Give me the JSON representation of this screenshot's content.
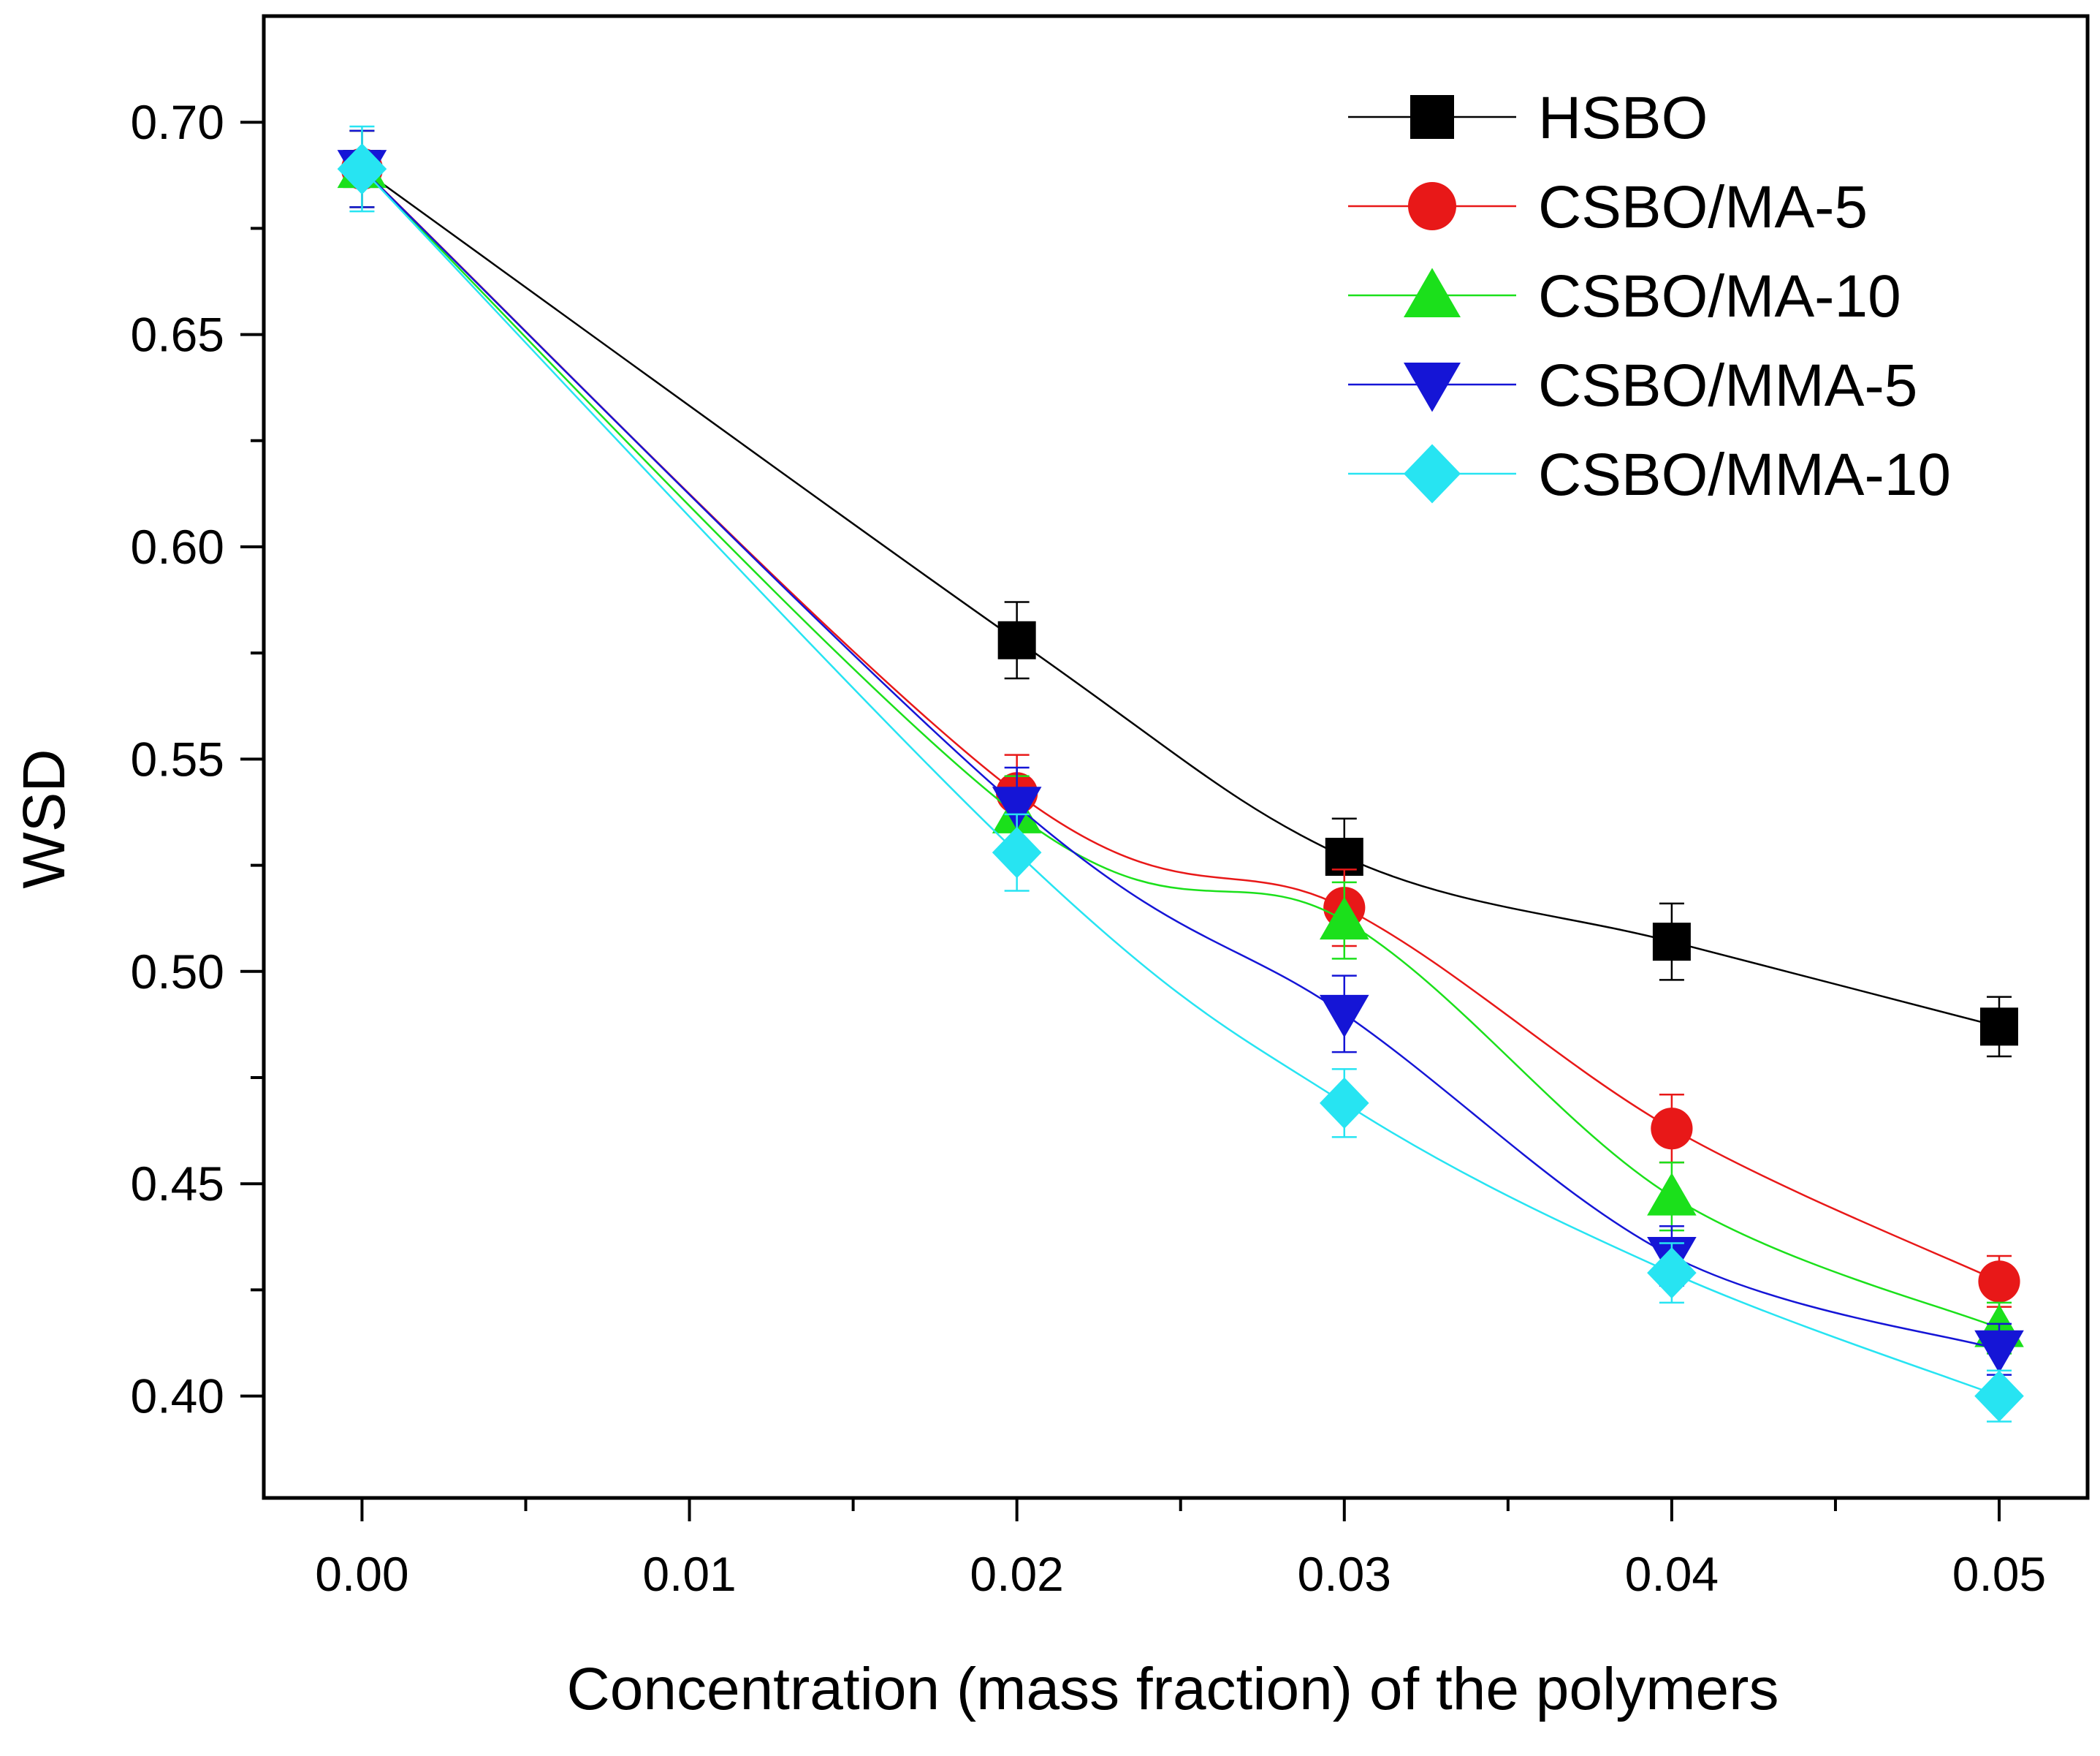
{
  "chart_data": {
    "type": "line",
    "title": "",
    "xlabel": "Concentration (mass fraction) of the polymers",
    "ylabel": "WSD",
    "xlim": [
      -0.003,
      0.0527
    ],
    "ylim": [
      0.376,
      0.725
    ],
    "x_ticks": [
      0.0,
      0.01,
      0.02,
      0.03,
      0.04,
      0.05
    ],
    "x_tick_labels": [
      "0.00",
      "0.01",
      "0.02",
      "0.03",
      "0.04",
      "0.05"
    ],
    "x_minor_ticks": [
      0.005,
      0.015,
      0.025,
      0.035,
      0.045
    ],
    "y_ticks": [
      0.4,
      0.45,
      0.5,
      0.55,
      0.6,
      0.65,
      0.7
    ],
    "y_tick_labels": [
      "0.40",
      "0.45",
      "0.50",
      "0.55",
      "0.60",
      "0.65",
      "0.70"
    ],
    "y_minor_ticks": [
      0.425,
      0.475,
      0.525,
      0.575,
      0.625,
      0.675
    ],
    "grid": false,
    "legend_position": "top-right",
    "x": [
      0.0,
      0.02,
      0.03,
      0.04,
      0.05
    ],
    "series": [
      {
        "name": "HSBO",
        "color": "#000000",
        "marker": "square",
        "values": [
          0.689,
          0.578,
          0.527,
          0.507,
          0.487
        ],
        "errors": [
          0.009,
          0.009,
          0.009,
          0.009,
          0.007
        ]
      },
      {
        "name": "CSBO/MA-5",
        "color": "#e81818",
        "marker": "circle",
        "values": [
          0.689,
          0.542,
          0.515,
          0.463,
          0.427
        ],
        "errors": [
          0.009,
          0.009,
          0.009,
          0.008,
          0.006
        ]
      },
      {
        "name": "CSBO/MA-10",
        "color": "#1be01b",
        "marker": "triangle-up",
        "values": [
          0.689,
          0.537,
          0.512,
          0.447,
          0.416
        ],
        "errors": [
          0.009,
          0.009,
          0.009,
          0.008,
          0.006
        ]
      },
      {
        "name": "CSBO/MMA-5",
        "color": "#1515d6",
        "marker": "triangle-down",
        "values": [
          0.689,
          0.539,
          0.49,
          0.433,
          0.411
        ],
        "errors": [
          0.009,
          0.009,
          0.009,
          0.007,
          0.006
        ]
      },
      {
        "name": "CSBO/MMA-10",
        "color": "#27e4f2",
        "marker": "diamond",
        "values": [
          0.689,
          0.528,
          0.469,
          0.429,
          0.4
        ],
        "errors": [
          0.01,
          0.009,
          0.008,
          0.007,
          0.006
        ]
      }
    ]
  }
}
